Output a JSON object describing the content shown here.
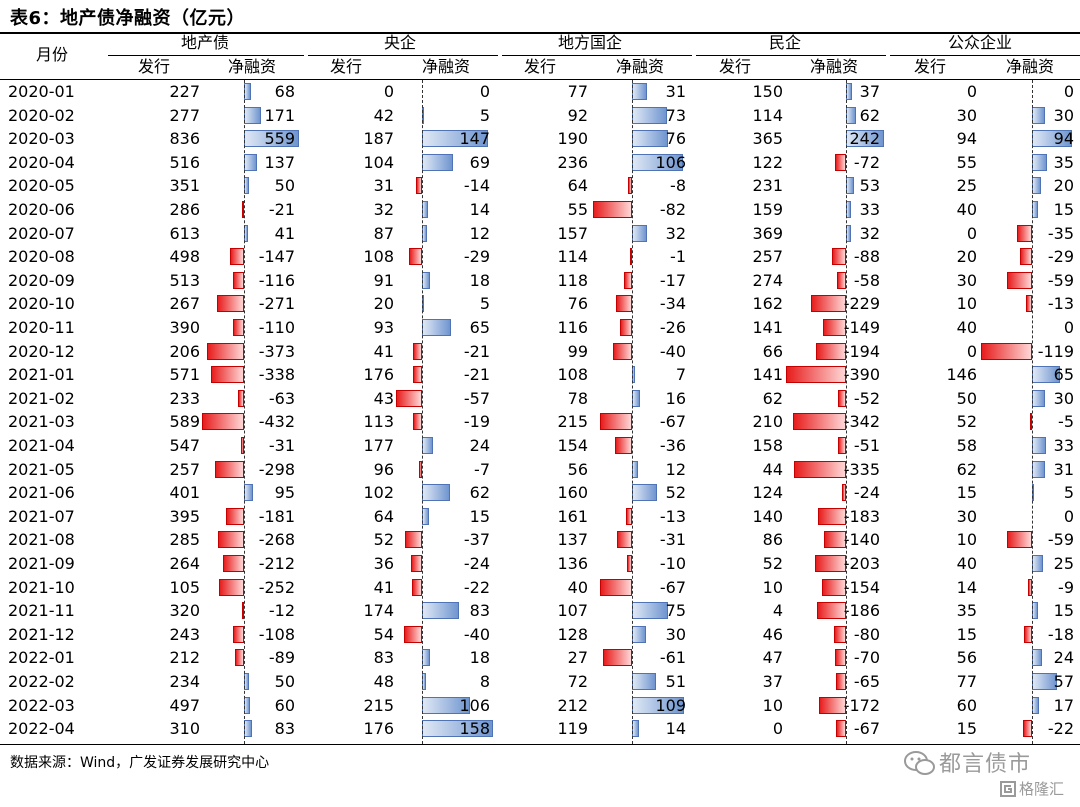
{
  "title": "表6：地产债净融资（亿元）",
  "header": {
    "month_label": "月份",
    "issue_label": "发行",
    "net_label": "净融资",
    "groups": [
      "地产债",
      "央企",
      "地方国企",
      "民企",
      "公众企业"
    ]
  },
  "rows": [
    {
      "month": "2020-01",
      "v": [
        [
          227,
          68
        ],
        [
          0,
          0
        ],
        [
          77,
          31
        ],
        [
          150,
          37
        ],
        [
          0,
          0
        ]
      ]
    },
    {
      "month": "2020-02",
      "v": [
        [
          277,
          171
        ],
        [
          42,
          5
        ],
        [
          92,
          73
        ],
        [
          114,
          62
        ],
        [
          30,
          30
        ]
      ]
    },
    {
      "month": "2020-03",
      "v": [
        [
          836,
          559
        ],
        [
          187,
          147
        ],
        [
          190,
          76
        ],
        [
          365,
          242
        ],
        [
          94,
          94
        ]
      ]
    },
    {
      "month": "2020-04",
      "v": [
        [
          516,
          137
        ],
        [
          104,
          69
        ],
        [
          236,
          106
        ],
        [
          122,
          -72
        ],
        [
          55,
          35
        ]
      ]
    },
    {
      "month": "2020-05",
      "v": [
        [
          351,
          50
        ],
        [
          31,
          -14
        ],
        [
          64,
          -8
        ],
        [
          231,
          53
        ],
        [
          25,
          20
        ]
      ]
    },
    {
      "month": "2020-06",
      "v": [
        [
          286,
          -21
        ],
        [
          32,
          14
        ],
        [
          55,
          -82
        ],
        [
          159,
          33
        ],
        [
          40,
          15
        ]
      ]
    },
    {
      "month": "2020-07",
      "v": [
        [
          613,
          41
        ],
        [
          87,
          12
        ],
        [
          157,
          32
        ],
        [
          369,
          32
        ],
        [
          0,
          -35
        ]
      ]
    },
    {
      "month": "2020-08",
      "v": [
        [
          498,
          -147
        ],
        [
          108,
          -29
        ],
        [
          114,
          -1
        ],
        [
          257,
          -88
        ],
        [
          20,
          -29
        ]
      ]
    },
    {
      "month": "2020-09",
      "v": [
        [
          513,
          -116
        ],
        [
          91,
          18
        ],
        [
          118,
          -17
        ],
        [
          274,
          -58
        ],
        [
          30,
          -59
        ]
      ]
    },
    {
      "month": "2020-10",
      "v": [
        [
          267,
          -271
        ],
        [
          20,
          5
        ],
        [
          76,
          -34
        ],
        [
          162,
          -229
        ],
        [
          10,
          -13
        ]
      ]
    },
    {
      "month": "2020-11",
      "v": [
        [
          390,
          -110
        ],
        [
          93,
          65
        ],
        [
          116,
          -26
        ],
        [
          141,
          -149
        ],
        [
          40,
          0
        ]
      ]
    },
    {
      "month": "2020-12",
      "v": [
        [
          206,
          -373
        ],
        [
          41,
          -21
        ],
        [
          99,
          -40
        ],
        [
          66,
          -194
        ],
        [
          0,
          -119
        ]
      ]
    },
    {
      "month": "2021-01",
      "v": [
        [
          571,
          -338
        ],
        [
          176,
          -21
        ],
        [
          108,
          7
        ],
        [
          141,
          -390
        ],
        [
          146,
          65
        ]
      ]
    },
    {
      "month": "2021-02",
      "v": [
        [
          233,
          -63
        ],
        [
          43,
          -57
        ],
        [
          78,
          16
        ],
        [
          62,
          -52
        ],
        [
          50,
          30
        ]
      ]
    },
    {
      "month": "2021-03",
      "v": [
        [
          589,
          -432
        ],
        [
          113,
          -19
        ],
        [
          215,
          -67
        ],
        [
          210,
          -342
        ],
        [
          52,
          -5
        ]
      ]
    },
    {
      "month": "2021-04",
      "v": [
        [
          547,
          -31
        ],
        [
          177,
          24
        ],
        [
          154,
          -36
        ],
        [
          158,
          -51
        ],
        [
          58,
          33
        ]
      ]
    },
    {
      "month": "2021-05",
      "v": [
        [
          257,
          -298
        ],
        [
          96,
          -7
        ],
        [
          56,
          12
        ],
        [
          44,
          -335
        ],
        [
          62,
          31
        ]
      ]
    },
    {
      "month": "2021-06",
      "v": [
        [
          401,
          95
        ],
        [
          102,
          62
        ],
        [
          160,
          52
        ],
        [
          124,
          -24
        ],
        [
          15,
          5
        ]
      ]
    },
    {
      "month": "2021-07",
      "v": [
        [
          395,
          -181
        ],
        [
          64,
          15
        ],
        [
          161,
          -13
        ],
        [
          140,
          -183
        ],
        [
          30,
          0
        ]
      ]
    },
    {
      "month": "2021-08",
      "v": [
        [
          285,
          -268
        ],
        [
          52,
          -37
        ],
        [
          137,
          -31
        ],
        [
          86,
          -140
        ],
        [
          10,
          -59
        ]
      ]
    },
    {
      "month": "2021-09",
      "v": [
        [
          264,
          -212
        ],
        [
          36,
          -24
        ],
        [
          136,
          -10
        ],
        [
          52,
          -203
        ],
        [
          40,
          25
        ]
      ]
    },
    {
      "month": "2021-10",
      "v": [
        [
          105,
          -252
        ],
        [
          41,
          -22
        ],
        [
          40,
          -67
        ],
        [
          10,
          -154
        ],
        [
          14,
          -9
        ]
      ]
    },
    {
      "month": "2021-11",
      "v": [
        [
          320,
          -12
        ],
        [
          174,
          83
        ],
        [
          107,
          75
        ],
        [
          4,
          -186
        ],
        [
          35,
          15
        ]
      ]
    },
    {
      "month": "2021-12",
      "v": [
        [
          243,
          -108
        ],
        [
          54,
          -40
        ],
        [
          128,
          30
        ],
        [
          46,
          -80
        ],
        [
          15,
          -18
        ]
      ]
    },
    {
      "month": "2022-01",
      "v": [
        [
          212,
          -89
        ],
        [
          83,
          18
        ],
        [
          27,
          -61
        ],
        [
          47,
          -70
        ],
        [
          56,
          24
        ]
      ]
    },
    {
      "month": "2022-02",
      "v": [
        [
          234,
          50
        ],
        [
          48,
          8
        ],
        [
          72,
          51
        ],
        [
          37,
          -65
        ],
        [
          77,
          57
        ]
      ]
    },
    {
      "month": "2022-03",
      "v": [
        [
          497,
          60
        ],
        [
          215,
          106
        ],
        [
          212,
          109
        ],
        [
          10,
          -172
        ],
        [
          60,
          17
        ]
      ]
    },
    {
      "month": "2022-04",
      "v": [
        [
          310,
          83
        ],
        [
          176,
          158
        ],
        [
          119,
          14
        ],
        [
          0,
          -67
        ],
        [
          15,
          -22
        ]
      ]
    }
  ],
  "source": "数据来源：Wind，广发证券发展研究中心",
  "watermark": {
    "line1": "都言债市",
    "line2": "格隆汇"
  },
  "colors": {
    "positive_bar": "#6f95cf",
    "negative_bar": "#e81d1d"
  }
}
